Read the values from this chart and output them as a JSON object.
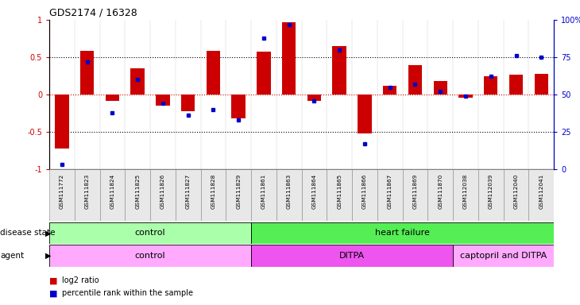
{
  "title": "GDS2174 / 16328",
  "samples": [
    "GSM111772",
    "GSM111823",
    "GSM111824",
    "GSM111825",
    "GSM111826",
    "GSM111827",
    "GSM111828",
    "GSM111829",
    "GSM111861",
    "GSM111863",
    "GSM111864",
    "GSM111865",
    "GSM111866",
    "GSM111867",
    "GSM111869",
    "GSM111870",
    "GSM112038",
    "GSM112039",
    "GSM112040",
    "GSM112041"
  ],
  "log2_ratio": [
    -0.72,
    0.58,
    -0.08,
    0.35,
    -0.15,
    -0.22,
    0.58,
    -0.32,
    0.57,
    0.97,
    -0.08,
    0.65,
    -0.52,
    0.12,
    0.39,
    0.18,
    -0.04,
    0.25,
    0.27,
    0.28
  ],
  "percentile": [
    3,
    72,
    38,
    60,
    44,
    36,
    40,
    33,
    88,
    97,
    46,
    80,
    17,
    55,
    57,
    52,
    49,
    62,
    76,
    75
  ],
  "disease_state_groups": [
    {
      "label": "control",
      "start": 0,
      "end": 8,
      "color": "#aaffaa"
    },
    {
      "label": "heart failure",
      "start": 8,
      "end": 20,
      "color": "#55ee55"
    }
  ],
  "agent_groups": [
    {
      "label": "control",
      "start": 0,
      "end": 8,
      "color": "#ffaaff"
    },
    {
      "label": "DITPA",
      "start": 8,
      "end": 16,
      "color": "#ee55ee"
    },
    {
      "label": "captopril and DITPA",
      "start": 16,
      "end": 20,
      "color": "#ffaaff"
    }
  ],
  "bar_color": "#cc0000",
  "dot_color": "#0000cc",
  "ylim_left": [
    -1,
    1
  ],
  "ylim_right": [
    0,
    100
  ],
  "yticks_left": [
    -1,
    -0.5,
    0,
    0.5,
    1
  ],
  "yticks_right": [
    0,
    25,
    50,
    75,
    100
  ],
  "hlines_dotted": [
    -0.5,
    0.5
  ],
  "hline_red_dotted": 0,
  "legend_items": [
    {
      "label": "log2 ratio",
      "color": "#cc0000"
    },
    {
      "label": "percentile rank within the sample",
      "color": "#0000cc"
    }
  ]
}
